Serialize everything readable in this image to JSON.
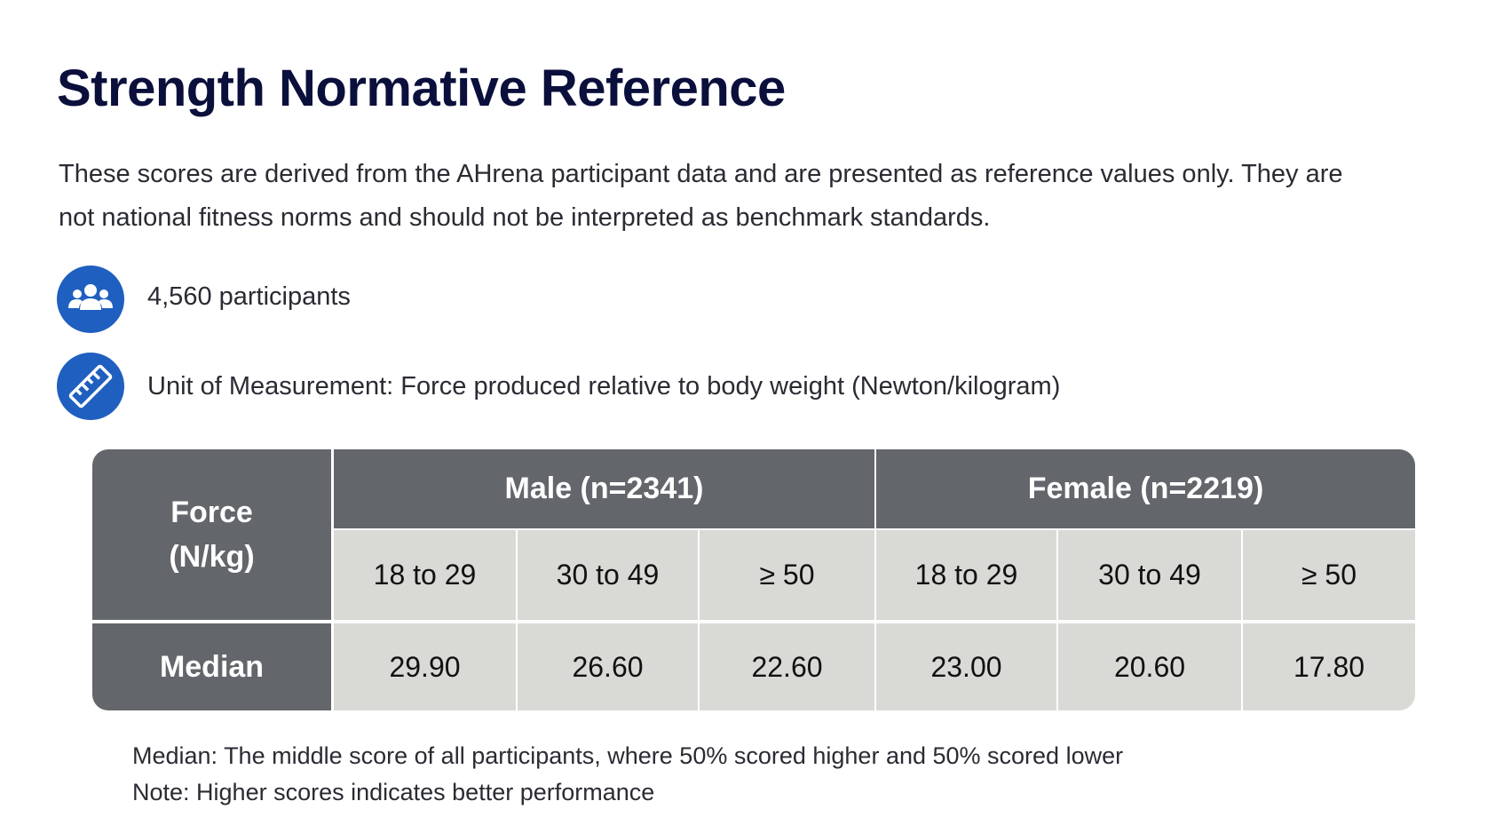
{
  "header": {
    "title": "Strength Normative Reference",
    "description": "These scores are derived from the AHrena participant data and are presented as reference values only. They are not national fitness norms and should not be interpreted as benchmark standards."
  },
  "info": {
    "participants": "4,560 participants",
    "unit": "Unit of Measurement: Force produced relative to body weight (Newton/kilogram)"
  },
  "table": {
    "corner": "Force (N/kg)",
    "groups": [
      "Male (n=2341)",
      "Female (n=2219)"
    ],
    "age_groups": [
      "18 to 29",
      "30 to 49",
      "≥ 50",
      "18 to 29",
      "30 to 49",
      "≥ 50"
    ],
    "rows": [
      {
        "label": "Median",
        "values": [
          "29.90",
          "26.60",
          "22.60",
          "23.00",
          "20.60",
          "17.80"
        ]
      }
    ]
  },
  "footnotes": [
    "Median: The middle score of all participants, where 50% scored higher and 50% scored lower",
    "Note: Higher scores indicates better performance"
  ]
}
